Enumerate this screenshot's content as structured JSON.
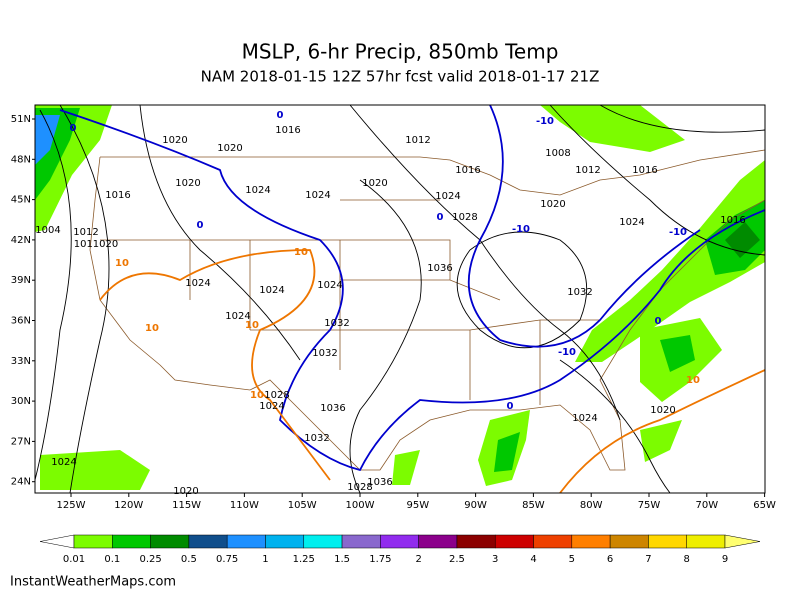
{
  "header": {
    "title": "MSLP, 6-hr Precip, 850mb Temp",
    "subtitle": "NAM 2018-01-15 12Z 57hr fcst valid 2018-01-17 21Z"
  },
  "map": {
    "lat_labels": [
      "51N",
      "48N",
      "45N",
      "42N",
      "39N",
      "36N",
      "33N",
      "30N",
      "27N",
      "24N"
    ],
    "lon_labels": [
      "125W",
      "120W",
      "115W",
      "110W",
      "105W",
      "100W",
      "95W",
      "90W",
      "85W",
      "80W",
      "75W",
      "70W",
      "65W"
    ],
    "isobar_labels": [
      "1020",
      "1016",
      "1012",
      "1020",
      "1016",
      "1012",
      "1016",
      "1008",
      "1020",
      "1024",
      "1020",
      "1016",
      "1024",
      "1024",
      "1020",
      "1028",
      "1024",
      "1016",
      "1004",
      "1012",
      "1011020",
      "1036",
      "1024",
      "1024",
      "1024",
      "1032",
      "1024",
      "1032",
      "1032",
      "1028",
      "1024",
      "1036",
      "1032",
      "1020",
      "1024",
      "1024",
      "1036",
      "1020",
      "1028"
    ],
    "isotherm_labels": [
      "0",
      "-10",
      "0",
      "0",
      "0",
      "-10",
      "-10",
      "10",
      "10",
      "10",
      "10",
      "-10",
      "0",
      "10",
      "10",
      "0"
    ]
  },
  "colorbar": {
    "labels": [
      "0.01",
      "0.1",
      "0.25",
      "0.5",
      "0.75",
      "1",
      "1.25",
      "1.5",
      "1.75",
      "2",
      "2.5",
      "3",
      "4",
      "5",
      "6",
      "7",
      "8",
      "9"
    ],
    "colors": [
      "#ffffff",
      "#7cfc00",
      "#00c800",
      "#008b00",
      "#104e8b",
      "#1e90ff",
      "#00b2ee",
      "#00eeee",
      "#8968cd",
      "#912cee",
      "#8b008b",
      "#8b0000",
      "#cd0000",
      "#ee4000",
      "#ff7f00",
      "#cd8500",
      "#ffd700",
      "#eeee00",
      "#ffff70"
    ]
  },
  "footer": {
    "text": "InstantWeatherMaps.com"
  }
}
